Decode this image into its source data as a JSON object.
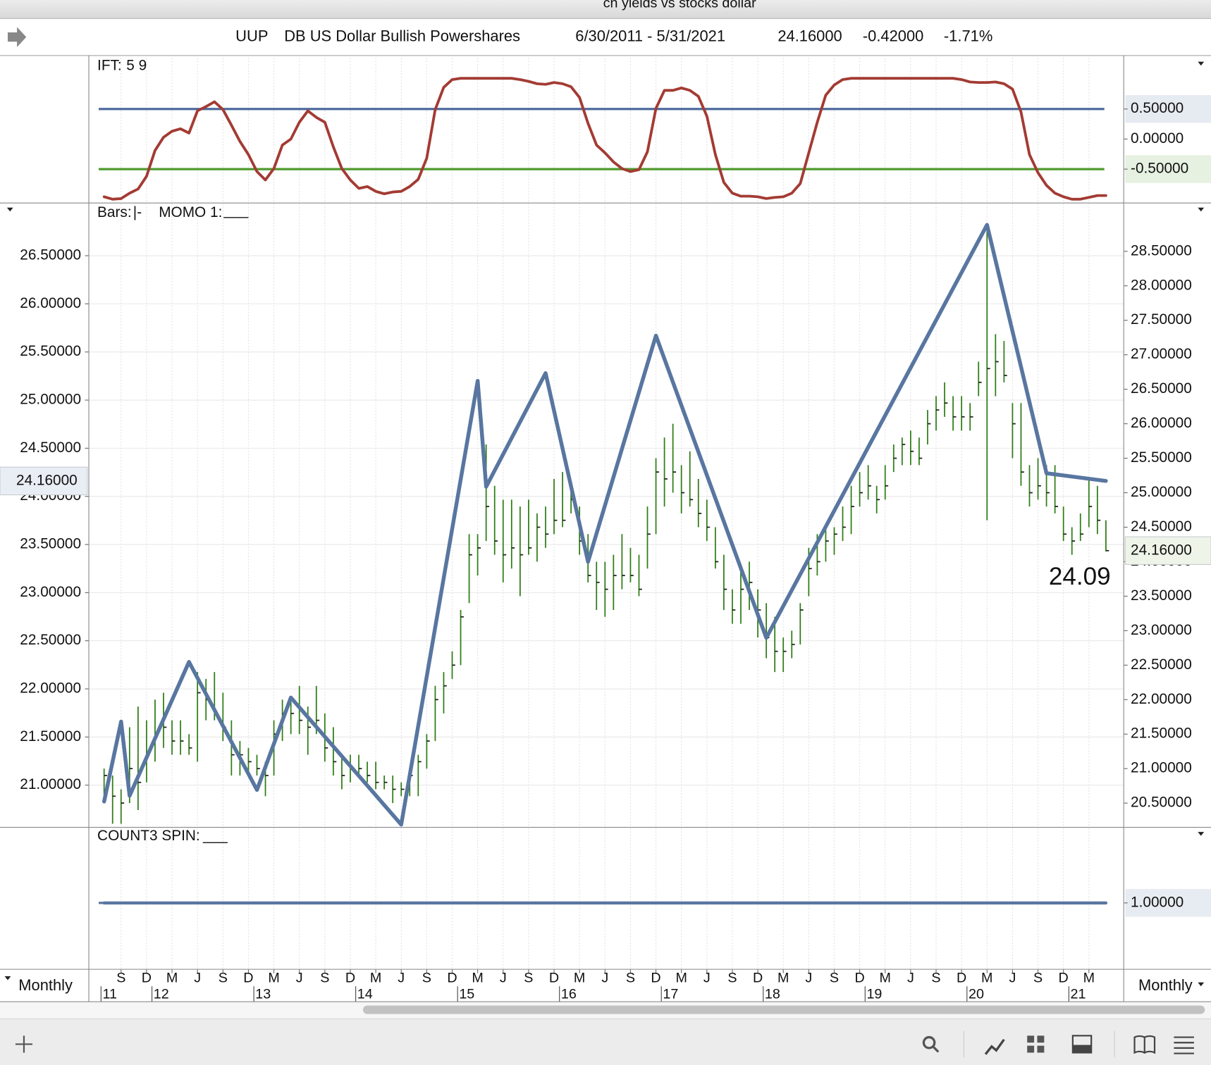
{
  "window_title": "cn yields vs stocks dollar",
  "header": {
    "symbol": "UUP",
    "name": "DB US Dollar Bullish Powershares",
    "date_range": "6/30/2011 - 5/31/2021",
    "last": "24.16000",
    "change": "-0.42000",
    "change_pct": "-1.71%"
  },
  "periodicity": {
    "left": "Monthly",
    "right": "Monthly"
  },
  "chart_data": [
    {
      "type": "line",
      "label": "IFT:",
      "params": "5 9",
      "params_color": "#a33b33",
      "xlim": [
        -1.8,
        120.1
      ],
      "ylim": [
        -1.05,
        1.35
      ],
      "yaxis_position": "right",
      "yticks": [
        {
          "value": 0.5,
          "label": "0.50000"
        },
        {
          "value": 0,
          "label": "0.00000"
        },
        {
          "value": -0.5,
          "label": "-0.50000"
        }
      ],
      "reference_lines": [
        {
          "value": 0.5,
          "color": "#4e6b9e"
        },
        {
          "value": -0.5,
          "color": "#4f9a2e"
        }
      ],
      "series": [
        {
          "color": "#a33b33",
          "values": [
            -0.96,
            -1.0,
            -0.99,
            -0.9,
            -0.83,
            -0.62,
            -0.19,
            0.03,
            0.13,
            0.17,
            0.1,
            0.47,
            0.54,
            0.62,
            0.49,
            0.23,
            -0.04,
            -0.26,
            -0.54,
            -0.68,
            -0.49,
            -0.1,
            0,
            0.28,
            0.47,
            0.36,
            0.28,
            -0.13,
            -0.49,
            -0.68,
            -0.82,
            -0.79,
            -0.87,
            -0.91,
            -0.88,
            -0.87,
            -0.79,
            -0.67,
            -0.32,
            0.49,
            0.86,
            0.99,
            1.01,
            1.01,
            1.01,
            1.01,
            1.01,
            1.01,
            1.01,
            0.99,
            0.96,
            0.92,
            0.91,
            0.94,
            0.92,
            0.87,
            0.69,
            0.26,
            -0.1,
            -0.23,
            -0.38,
            -0.49,
            -0.54,
            -0.51,
            -0.21,
            0.51,
            0.81,
            0.81,
            0.85,
            0.81,
            0.71,
            0.38,
            -0.26,
            -0.72,
            -0.9,
            -0.95,
            -0.95,
            -0.96,
            -0.99,
            -0.97,
            -0.96,
            -0.9,
            -0.74,
            -0.23,
            0.28,
            0.73,
            0.9,
            0.99,
            1.01,
            1.01,
            1.01,
            1.01,
            1.01,
            1.01,
            1.01,
            1.01,
            1.01,
            1.01,
            1.01,
            1.01,
            1.01,
            0.99,
            0.95,
            0.94,
            0.94,
            0.95,
            0.92,
            0.83,
            0.45,
            -0.26,
            -0.56,
            -0.77,
            -0.9,
            -0.96,
            -1.0,
            -1.0,
            -0.97,
            -0.94,
            -0.94
          ]
        }
      ]
    },
    {
      "type": "bars",
      "grid": true,
      "xlim": [
        -1.8,
        120.1
      ],
      "ylim": [
        20.57,
        27.04
      ],
      "y2lim": [
        20.16,
        29.19
      ],
      "yticks": [
        {
          "value": 21,
          "label": "21.00000"
        },
        {
          "value": 21.5,
          "label": "21.50000"
        },
        {
          "value": 22,
          "label": "22.00000"
        },
        {
          "value": 22.5,
          "label": "22.50000"
        },
        {
          "value": 23,
          "label": "23.00000"
        },
        {
          "value": 23.5,
          "label": "23.50000"
        },
        {
          "value": 24,
          "label": "24.00000"
        },
        {
          "value": 24.5,
          "label": "24.50000"
        },
        {
          "value": 25,
          "label": "25.00000"
        },
        {
          "value": 25.5,
          "label": "25.50000"
        },
        {
          "value": 26,
          "label": "26.00000"
        },
        {
          "value": 26.5,
          "label": "26.50000"
        }
      ],
      "y2ticks": [
        {
          "value": 20.5,
          "label": "20.50000"
        },
        {
          "value": 21,
          "label": "21.00000"
        },
        {
          "value": 21.5,
          "label": "21.50000"
        },
        {
          "value": 22,
          "label": "22.00000"
        },
        {
          "value": 22.5,
          "label": "22.50000"
        },
        {
          "value": 23,
          "label": "23.00000"
        },
        {
          "value": 23.5,
          "label": "23.50000"
        },
        {
          "value": 24,
          "label": "24.00000"
        },
        {
          "value": 24.5,
          "label": "24.50000"
        },
        {
          "value": 25,
          "label": "25.00000"
        },
        {
          "value": 25.5,
          "label": "25.50000"
        },
        {
          "value": 26,
          "label": "26.00000"
        },
        {
          "value": 26.5,
          "label": "26.50000"
        },
        {
          "value": 27,
          "label": "27.00000"
        },
        {
          "value": 27.5,
          "label": "27.50000"
        },
        {
          "value": 28,
          "label": "28.00000"
        },
        {
          "value": 28.5,
          "label": "28.50000"
        }
      ],
      "bars": {
        "name": "Bars:",
        "legend_symbol": "|-",
        "color": "#2f7d16",
        "axis": "y2",
        "low": [
          20.5,
          20.2,
          20.2,
          20.5,
          20.4,
          20.8,
          21.1,
          21.3,
          21.2,
          21.2,
          21.2,
          21.1,
          21.7,
          21.7,
          21.4,
          20.9,
          20.9,
          20.9,
          20.9,
          20.6,
          20.9,
          21.4,
          21.5,
          21.5,
          21.2,
          21.5,
          21.1,
          20.9,
          20.7,
          20.8,
          20.9,
          20.8,
          20.7,
          20.7,
          20.5,
          20.6,
          20.6,
          20.6,
          21.0,
          21.4,
          21.8,
          22.3,
          22.5,
          23.4,
          23.8,
          24.3,
          24.1,
          23.7,
          23.9,
          23.5,
          24.1,
          24.0,
          24.2,
          24.4,
          24.5,
          24.7,
          24.1,
          23.7,
          23.3,
          23.2,
          23.3,
          23.6,
          23.7,
          23.5,
          23.9,
          24.4,
          24.8,
          25.0,
          24.7,
          24.8,
          24.5,
          24.3,
          23.9,
          23.3,
          23.1,
          23.1,
          23.3,
          22.9,
          22.6,
          22.4,
          22.4,
          22.6,
          22.8,
          23.5,
          23.8,
          24.0,
          24.1,
          24.3,
          24.4,
          24.8,
          24.9,
          24.7,
          24.9,
          25.3,
          25.4,
          25.4,
          25.4,
          25.7,
          25.9,
          26.1,
          25.9,
          25.9,
          25.9,
          26.4,
          24.6,
          26.4,
          26.6,
          25.5,
          25.1,
          24.8,
          24.9,
          24.8,
          24.7,
          24.3,
          24.1,
          24.3,
          24.5,
          24.4,
          24.15
        ],
        "high": [
          21.0,
          20.9,
          20.7,
          21.6,
          21.9,
          21.7,
          22.0,
          22.1,
          21.7,
          21.7,
          21.5,
          22.4,
          22.3,
          22.4,
          22.1,
          21.7,
          21.4,
          21.3,
          21.2,
          21.1,
          21.7,
          22.0,
          22.0,
          22.2,
          21.9,
          22.2,
          21.8,
          21.6,
          21.2,
          21.2,
          21.2,
          21.1,
          21.1,
          20.9,
          20.9,
          20.8,
          21.0,
          21.2,
          21.5,
          22.2,
          22.4,
          22.7,
          23.3,
          24.4,
          24.4,
          25.7,
          25.1,
          24.9,
          24.9,
          24.8,
          24.9,
          24.7,
          24.8,
          25.2,
          25.3,
          25.1,
          24.8,
          24.4,
          24.0,
          24.0,
          24.1,
          24.4,
          24.2,
          24.1,
          24.8,
          25.5,
          25.8,
          26.0,
          25.4,
          25.6,
          25.2,
          24.9,
          24.5,
          24.1,
          23.6,
          23.9,
          24.0,
          23.6,
          23.4,
          23.2,
          22.9,
          23.0,
          23.4,
          24.2,
          24.4,
          24.5,
          24.5,
          24.8,
          25.1,
          25.3,
          25.4,
          25.1,
          25.4,
          25.7,
          25.8,
          25.9,
          25.8,
          26.2,
          26.4,
          26.6,
          26.4,
          26.4,
          26.3,
          26.9,
          28.9,
          27.3,
          27.2,
          26.3,
          26.3,
          25.4,
          25.5,
          25.4,
          25.4,
          24.8,
          24.5,
          24.7,
          25.2,
          25.1,
          24.6
        ],
        "close": [
          20.9,
          20.6,
          20.5,
          21.0,
          20.8,
          21.2,
          21.5,
          21.6,
          21.4,
          21.4,
          21.3,
          22.1,
          22.0,
          21.8,
          21.6,
          21.2,
          21.2,
          21.1,
          21.0,
          20.9,
          21.5,
          21.8,
          21.8,
          21.7,
          21.6,
          21.7,
          21.3,
          21.1,
          20.9,
          21.0,
          21.0,
          20.9,
          20.8,
          20.8,
          20.7,
          20.7,
          20.9,
          21.1,
          21.4,
          22.0,
          22.2,
          22.5,
          23.2,
          24.1,
          24.2,
          24.8,
          24.3,
          24.1,
          24.2,
          24.1,
          24.2,
          24.5,
          24.4,
          24.6,
          24.6,
          24.9,
          24.3,
          23.8,
          23.7,
          23.6,
          23.8,
          23.8,
          23.8,
          23.6,
          24.4,
          25.3,
          25.2,
          25.3,
          25.0,
          24.9,
          24.7,
          24.5,
          24.0,
          23.6,
          23.3,
          23.6,
          23.7,
          23.3,
          22.9,
          22.7,
          22.7,
          22.8,
          23.3,
          23.9,
          24.0,
          24.3,
          24.4,
          24.5,
          24.8,
          25.0,
          25.1,
          24.9,
          25.1,
          25.5,
          25.7,
          25.6,
          25.5,
          26.0,
          26.2,
          26.3,
          26.1,
          26.1,
          26.1,
          26.6,
          26.8,
          26.9,
          26.7,
          26.0,
          25.3,
          25.0,
          25.1,
          25.0,
          24.8,
          24.4,
          24.3,
          24.4,
          24.8,
          24.6,
          24.16
        ]
      },
      "series": [
        {
          "name": "MOMO 1:",
          "legend_symbol": "___",
          "color": "#5876a0",
          "axis": "y",
          "x": [
            0,
            2,
            3,
            10,
            18,
            22,
            35,
            44,
            45,
            52,
            57,
            65,
            78,
            104,
            111,
            118
          ],
          "values": [
            20.83,
            21.66,
            20.89,
            22.28,
            20.95,
            21.91,
            20.59,
            25.2,
            24.1,
            25.28,
            23.32,
            25.67,
            22.53,
            26.82,
            24.24,
            24.16
          ]
        }
      ],
      "tags": [
        {
          "axis": "y",
          "value": 24.16,
          "label": "24.16000"
        },
        {
          "axis": "y2",
          "value": 24.16,
          "label": "24.16000"
        }
      ],
      "annotation": {
        "text": "24.09",
        "color": "#4a90d9"
      }
    },
    {
      "type": "line",
      "label": "COUNT3 SPIN:",
      "legend_symbol": "___",
      "xlim": [
        -1.8,
        120.1
      ],
      "ylim": [
        0,
        2.14
      ],
      "yaxis_position": "right",
      "yticks": [
        {
          "value": 1,
          "label": "1.00000"
        }
      ],
      "reference_lines": [
        {
          "value": 1,
          "color": "#5876a0"
        }
      ],
      "series": [
        {
          "color": "#5876a0",
          "x": [
            0,
            118
          ],
          "values": [
            1,
            1
          ]
        }
      ],
      "xticks": [
        {
          "value": 2,
          "label": "S"
        },
        {
          "value": 5,
          "label": "D"
        },
        {
          "value": 8,
          "label": "M"
        },
        {
          "value": 11,
          "label": "J"
        },
        {
          "value": 14,
          "label": "S"
        },
        {
          "value": 17,
          "label": "D"
        },
        {
          "value": 20,
          "label": "M"
        },
        {
          "value": 23,
          "label": "J"
        },
        {
          "value": 26,
          "label": "S"
        },
        {
          "value": 29,
          "label": "D"
        },
        {
          "value": 32,
          "label": "M"
        },
        {
          "value": 35,
          "label": "J"
        },
        {
          "value": 38,
          "label": "S"
        },
        {
          "value": 41,
          "label": "D"
        },
        {
          "value": 44,
          "label": "M"
        },
        {
          "value": 47,
          "label": "J"
        },
        {
          "value": 50,
          "label": "S"
        },
        {
          "value": 53,
          "label": "D"
        },
        {
          "value": 56,
          "label": "M"
        },
        {
          "value": 59,
          "label": "J"
        },
        {
          "value": 62,
          "label": "S"
        },
        {
          "value": 65,
          "label": "D"
        },
        {
          "value": 68,
          "label": "M"
        },
        {
          "value": 71,
          "label": "J"
        },
        {
          "value": 74,
          "label": "S"
        },
        {
          "value": 77,
          "label": "D"
        },
        {
          "value": 80,
          "label": "M"
        },
        {
          "value": 83,
          "label": "J"
        },
        {
          "value": 86,
          "label": "S"
        },
        {
          "value": 89,
          "label": "D"
        },
        {
          "value": 92,
          "label": "M"
        },
        {
          "value": 95,
          "label": "J"
        },
        {
          "value": 98,
          "label": "S"
        },
        {
          "value": 101,
          "label": "D"
        },
        {
          "value": 104,
          "label": "M"
        },
        {
          "value": 107,
          "label": "J"
        },
        {
          "value": 110,
          "label": "S"
        },
        {
          "value": 113,
          "label": "D"
        },
        {
          "value": 116,
          "label": "M"
        }
      ],
      "year_ticks": [
        {
          "value": 0,
          "label": "11"
        },
        {
          "value": 6,
          "label": "12"
        },
        {
          "value": 18,
          "label": "13"
        },
        {
          "value": 30,
          "label": "14"
        },
        {
          "value": 42,
          "label": "15"
        },
        {
          "value": 54,
          "label": "16"
        },
        {
          "value": 66,
          "label": "17"
        },
        {
          "value": 78,
          "label": "18"
        },
        {
          "value": 90,
          "label": "19"
        },
        {
          "value": 102,
          "label": "20"
        },
        {
          "value": 114,
          "label": "21"
        }
      ]
    }
  ]
}
